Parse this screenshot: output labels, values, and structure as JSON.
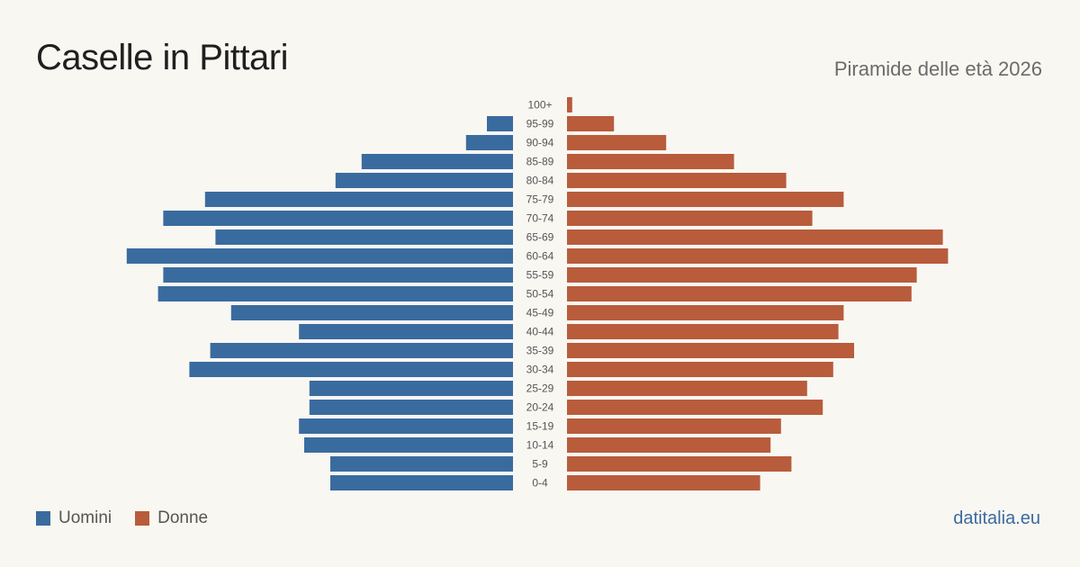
{
  "header": {
    "title": "Caselle in Pittari",
    "subtitle": "Piramide delle età 2026"
  },
  "legend": {
    "men_label": "Uomini",
    "women_label": "Donne"
  },
  "footer": {
    "source": "datitalia.eu"
  },
  "colors": {
    "men": "#3a6b9f",
    "women": "#b85c3c",
    "background": "#f9f7f2"
  },
  "chart_data": {
    "type": "bar",
    "orientation": "horizontal-pyramid",
    "categories": [
      "100+",
      "95-99",
      "90-94",
      "85-89",
      "80-84",
      "75-79",
      "70-74",
      "65-69",
      "60-64",
      "55-59",
      "50-54",
      "45-49",
      "40-44",
      "35-39",
      "30-34",
      "25-29",
      "20-24",
      "15-19",
      "10-14",
      "5-9",
      "0-4"
    ],
    "series": [
      {
        "name": "Uomini",
        "values": [
          0,
          5,
          9,
          29,
          34,
          59,
          67,
          57,
          74,
          67,
          68,
          54,
          41,
          58,
          62,
          39,
          39,
          41,
          40,
          35,
          35
        ]
      },
      {
        "name": "Donne",
        "values": [
          1,
          9,
          19,
          32,
          42,
          53,
          47,
          72,
          73,
          67,
          66,
          53,
          52,
          55,
          51,
          46,
          49,
          41,
          39,
          43,
          37
        ]
      }
    ],
    "title": "Caselle in Pittari",
    "subtitle": "Piramide delle età 2026",
    "xlabel": "",
    "ylabel": "",
    "grid": false,
    "legend_position": "bottom-left"
  }
}
